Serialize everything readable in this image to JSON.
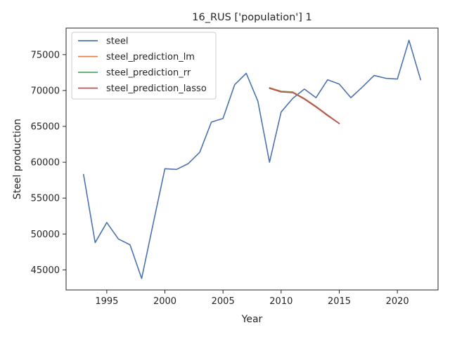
{
  "chart_data": {
    "type": "line",
    "title": "16_RUS ['population'] 1",
    "xlabel": "Year",
    "ylabel": "Steel production",
    "xlim": [
      1991.5,
      2023.5
    ],
    "ylim": [
      42200,
      78700
    ],
    "xticks": [
      1995,
      2000,
      2005,
      2010,
      2015,
      2020
    ],
    "yticks": [
      45000,
      50000,
      55000,
      60000,
      65000,
      70000,
      75000
    ],
    "grid": false,
    "legend_position": "top-left",
    "series": [
      {
        "name": "steel",
        "color": "#4c72b0",
        "points": [
          [
            1993,
            58300
          ],
          [
            1994,
            48800
          ],
          [
            1995,
            51600
          ],
          [
            1996,
            49300
          ],
          [
            1997,
            48500
          ],
          [
            1998,
            43800
          ],
          [
            1999,
            51500
          ],
          [
            2000,
            59100
          ],
          [
            2001,
            59000
          ],
          [
            2002,
            59800
          ],
          [
            2003,
            61400
          ],
          [
            2004,
            65600
          ],
          [
            2005,
            66100
          ],
          [
            2006,
            70800
          ],
          [
            2007,
            72400
          ],
          [
            2008,
            68500
          ],
          [
            2009,
            60000
          ],
          [
            2010,
            67000
          ],
          [
            2011,
            68900
          ],
          [
            2012,
            70200
          ],
          [
            2013,
            69000
          ],
          [
            2014,
            71500
          ],
          [
            2015,
            70900
          ],
          [
            2016,
            69000
          ],
          [
            2017,
            70500
          ],
          [
            2018,
            72100
          ],
          [
            2019,
            71700
          ],
          [
            2020,
            71600
          ],
          [
            2021,
            77000
          ],
          [
            2022,
            71500
          ]
        ]
      },
      {
        "name": "steel_prediction_lm",
        "color": "#dd8452",
        "points": [
          [
            2009,
            70400
          ],
          [
            2010,
            69900
          ],
          [
            2011,
            69800
          ],
          [
            2012,
            68900
          ],
          [
            2013,
            67800
          ],
          [
            2014,
            66600
          ],
          [
            2015,
            65400
          ]
        ]
      },
      {
        "name": "steel_prediction_rr",
        "color": "#55a868",
        "points": [
          [
            2009,
            70350
          ],
          [
            2010,
            69850
          ],
          [
            2011,
            69750
          ],
          [
            2012,
            68850
          ],
          [
            2013,
            67750
          ],
          [
            2014,
            66550
          ],
          [
            2015,
            65400
          ]
        ]
      },
      {
        "name": "steel_prediction_lasso",
        "color": "#c44e52",
        "points": [
          [
            2009,
            70300
          ],
          [
            2010,
            69800
          ],
          [
            2011,
            69700
          ],
          [
            2012,
            68800
          ],
          [
            2013,
            67700
          ],
          [
            2014,
            66500
          ],
          [
            2015,
            65400
          ]
        ]
      }
    ]
  }
}
